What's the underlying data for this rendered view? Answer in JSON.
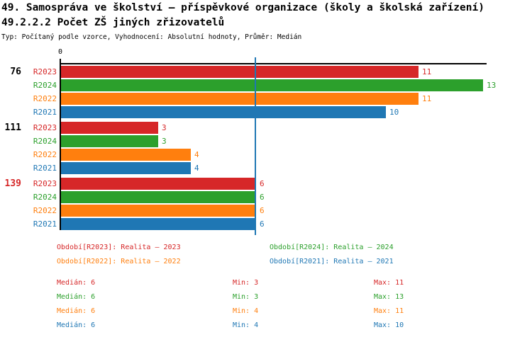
{
  "header": {
    "title": "49. Samospráva ve školství – příspěvkové organizace (školy a školská zařízení)",
    "subtitle": "49.2.2.2 Počet ZŠ jiných zřizovatelů",
    "meta": "Typ: Počítaný podle vzorce, Vyhodnocení: Absolutní hodnoty, Průměr: Medián"
  },
  "chart_data": {
    "type": "bar",
    "orientation": "horizontal",
    "title": "49.2.2.2 Počet ZŠ jiných zřizovatelů",
    "axis": {
      "origin_tick_label": "0",
      "xmin": 0,
      "xmax": 13.1,
      "grid": false,
      "median_line_value": 6,
      "median_line_color": "#1f77b4"
    },
    "group_labels": [
      "76",
      "111",
      "139"
    ],
    "group_label_colors": [
      "#000000",
      "#000000",
      "#d62728"
    ],
    "series": [
      {
        "name": "R2023",
        "color": "#d62728",
        "values": [
          11,
          3,
          6
        ]
      },
      {
        "name": "R2024",
        "color": "#2ca02c",
        "values": [
          13,
          3,
          6
        ]
      },
      {
        "name": "R2022",
        "color": "#ff7f0e",
        "values": [
          11,
          4,
          6
        ]
      },
      {
        "name": "R2021",
        "color": "#1f77b4",
        "values": [
          10,
          4,
          6
        ]
      }
    ]
  },
  "legend": {
    "items": [
      {
        "label": "Období[R2023]: Realita – 2023",
        "color": "#d62728"
      },
      {
        "label": "Období[R2024]: Realita – 2024",
        "color": "#2ca02c"
      },
      {
        "label": "Období[R2022]: Realita – 2022",
        "color": "#ff7f0e"
      },
      {
        "label": "Období[R2021]: Realita – 2021",
        "color": "#1f77b4"
      }
    ]
  },
  "stats": {
    "rows": [
      {
        "median": "Medián: 6",
        "min": "Min: 3",
        "max": "Max: 11",
        "color": "#d62728"
      },
      {
        "median": "Medián: 6",
        "min": "Min: 3",
        "max": "Max: 13",
        "color": "#2ca02c"
      },
      {
        "median": "Medián: 6",
        "min": "Min: 4",
        "max": "Max: 11",
        "color": "#ff7f0e"
      },
      {
        "median": "Medián: 6",
        "min": "Min: 4",
        "max": "Max: 10",
        "color": "#1f77b4"
      }
    ]
  }
}
